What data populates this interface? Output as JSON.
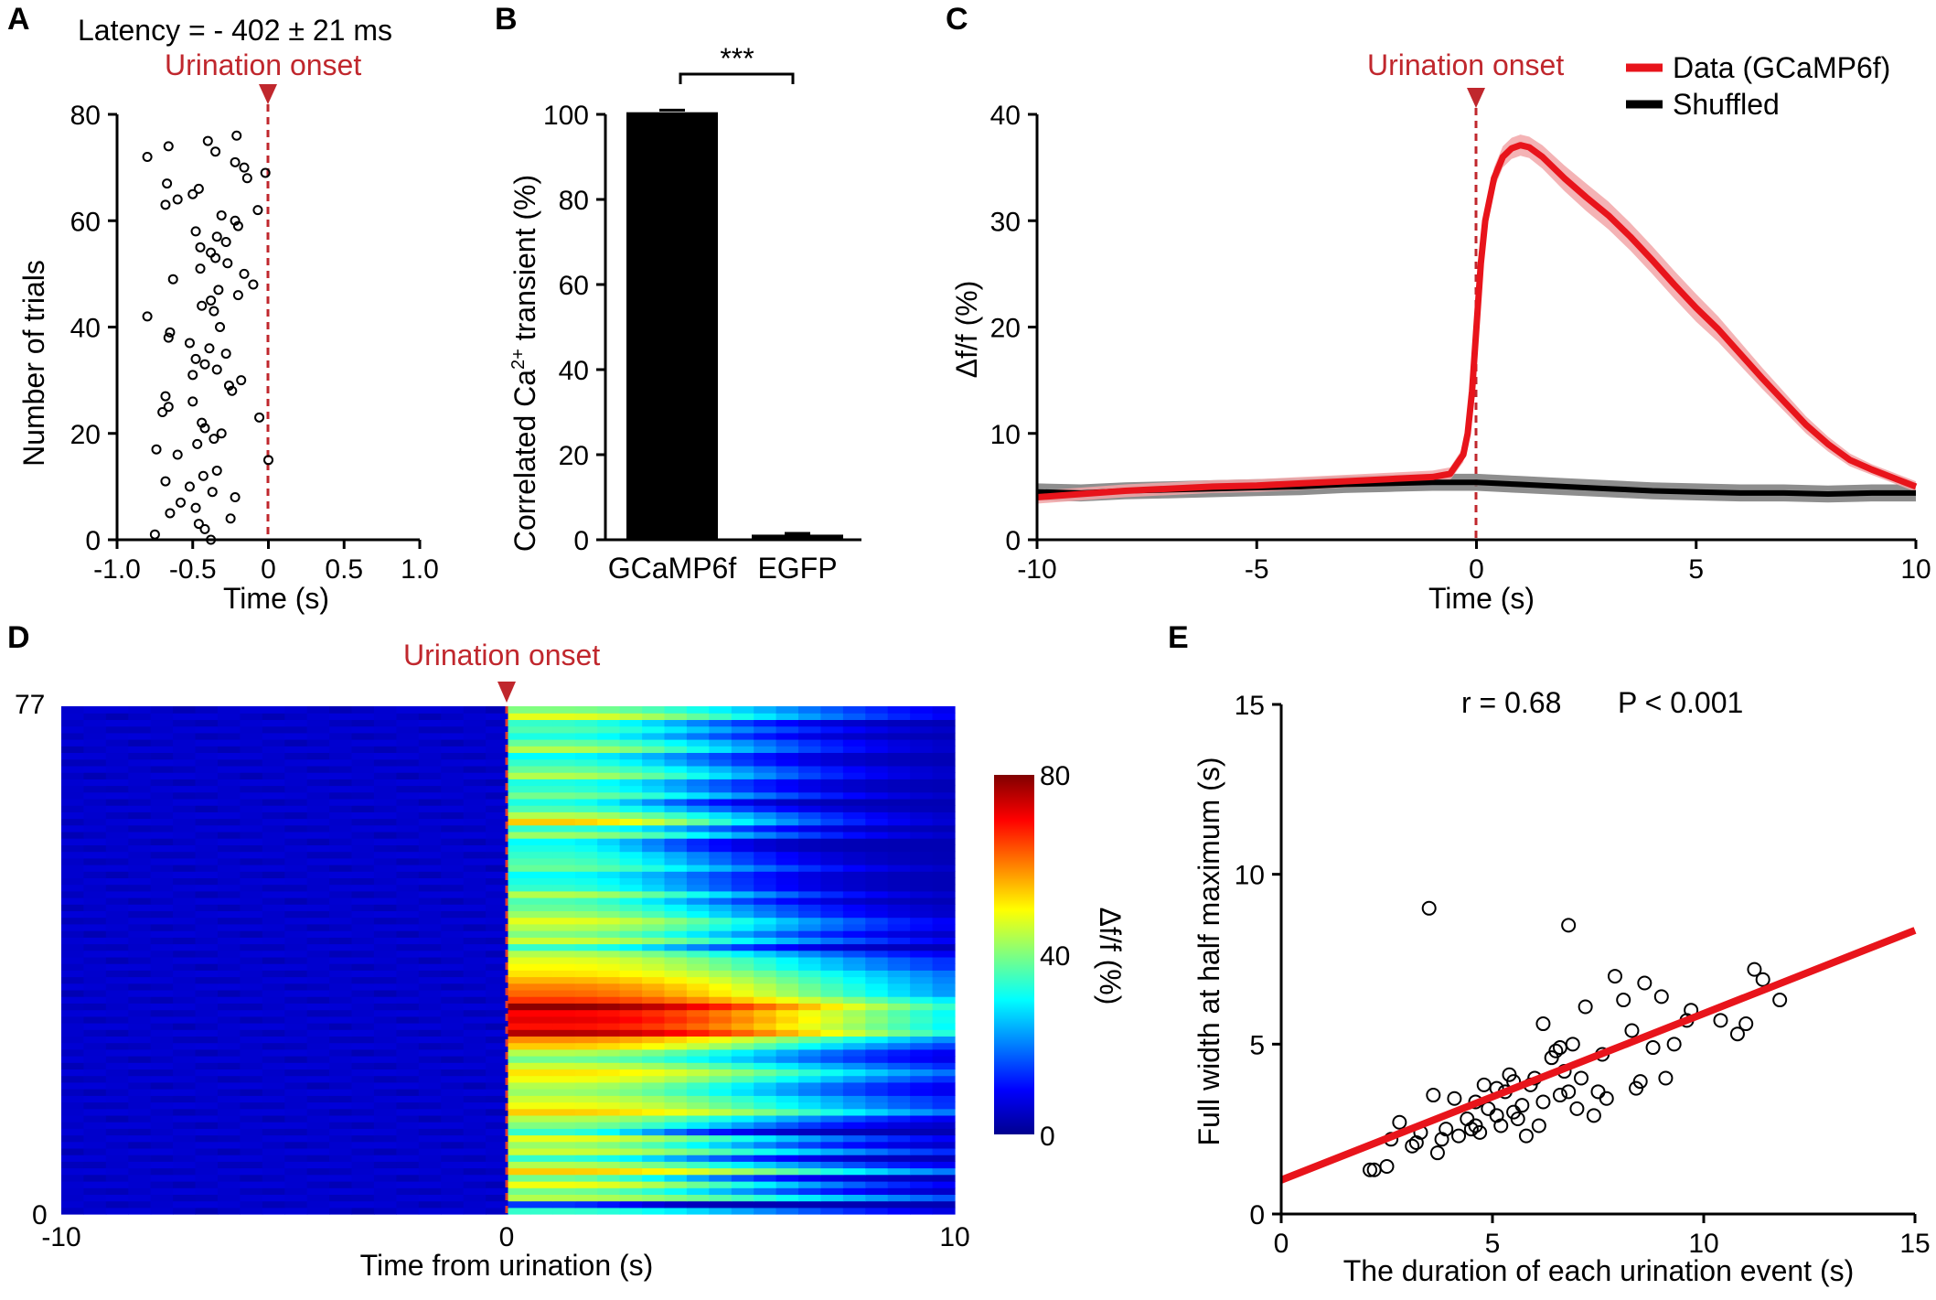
{
  "chart_data": [
    {
      "panel": "A",
      "type": "scatter",
      "title": "Latency = - 402 ± 21 ms",
      "annotation": "Urination onset",
      "xlabel": "Time (s)",
      "ylabel": "Number of trials",
      "xlim": [
        -1.0,
        1.0
      ],
      "ylim": [
        0,
        80
      ],
      "xticks": [
        "-1.0",
        "-0.5",
        "0",
        "0.5",
        "1.0"
      ],
      "yticks": [
        "0",
        "20",
        "40",
        "60",
        "80"
      ],
      "onset_x": 0,
      "points": [
        [
          -0.38,
          0
        ],
        [
          -0.75,
          1
        ],
        [
          -0.42,
          2
        ],
        [
          -0.46,
          3
        ],
        [
          -0.25,
          4
        ],
        [
          -0.65,
          5
        ],
        [
          -0.48,
          6
        ],
        [
          -0.58,
          7
        ],
        [
          -0.22,
          8
        ],
        [
          -0.37,
          9
        ],
        [
          -0.52,
          10
        ],
        [
          -0.68,
          11
        ],
        [
          -0.43,
          12
        ],
        [
          -0.34,
          13
        ],
        [
          0.0,
          15
        ],
        [
          -0.6,
          16
        ],
        [
          -0.74,
          17
        ],
        [
          -0.47,
          18
        ],
        [
          -0.36,
          19
        ],
        [
          -0.31,
          20
        ],
        [
          -0.42,
          21
        ],
        [
          -0.44,
          22
        ],
        [
          -0.06,
          23
        ],
        [
          -0.7,
          24
        ],
        [
          -0.66,
          25
        ],
        [
          -0.5,
          26
        ],
        [
          -0.68,
          27
        ],
        [
          -0.24,
          28
        ],
        [
          -0.26,
          29
        ],
        [
          -0.18,
          30
        ],
        [
          -0.5,
          31
        ],
        [
          -0.34,
          32
        ],
        [
          -0.42,
          33
        ],
        [
          -0.48,
          34
        ],
        [
          -0.28,
          35
        ],
        [
          -0.39,
          36
        ],
        [
          -0.52,
          37
        ],
        [
          -0.66,
          38
        ],
        [
          -0.65,
          39
        ],
        [
          -0.32,
          40
        ],
        [
          -0.8,
          42
        ],
        [
          -0.36,
          43
        ],
        [
          -0.44,
          44
        ],
        [
          -0.38,
          45
        ],
        [
          -0.2,
          46
        ],
        [
          -0.33,
          47
        ],
        [
          -0.1,
          48
        ],
        [
          -0.63,
          49
        ],
        [
          -0.16,
          50
        ],
        [
          -0.45,
          51
        ],
        [
          -0.27,
          52
        ],
        [
          -0.35,
          53
        ],
        [
          -0.38,
          54
        ],
        [
          -0.45,
          55
        ],
        [
          -0.28,
          56
        ],
        [
          -0.34,
          57
        ],
        [
          -0.48,
          58
        ],
        [
          -0.2,
          59
        ],
        [
          -0.22,
          60
        ],
        [
          -0.31,
          61
        ],
        [
          -0.07,
          62
        ],
        [
          -0.68,
          63
        ],
        [
          -0.6,
          64
        ],
        [
          -0.5,
          65
        ],
        [
          -0.46,
          66
        ],
        [
          -0.67,
          67
        ],
        [
          -0.14,
          68
        ],
        [
          -0.02,
          69
        ],
        [
          -0.16,
          70
        ],
        [
          -0.22,
          71
        ],
        [
          -0.8,
          72
        ],
        [
          -0.35,
          73
        ],
        [
          -0.66,
          74
        ],
        [
          -0.4,
          75
        ],
        [
          -0.21,
          76
        ]
      ]
    },
    {
      "panel": "B",
      "type": "bar",
      "categories": [
        "GCaMP6f",
        "EGFP"
      ],
      "values": [
        100.5,
        1.2
      ],
      "errors": [
        0.5,
        0.3
      ],
      "ylabel_main": "Correlated Ca",
      "ylabel_sup": "2+",
      "ylabel_rest": " transient (%)",
      "ylim": [
        0,
        100
      ],
      "yticks": [
        "0",
        "20",
        "40",
        "60",
        "80",
        "100"
      ],
      "significance": "***"
    },
    {
      "panel": "C",
      "type": "line",
      "annotation": "Urination onset",
      "xlabel": "Time (s)",
      "ylabel": "Δf/f (%)",
      "xlim": [
        -10,
        10
      ],
      "ylim": [
        0,
        40
      ],
      "xticks": [
        "-10",
        "-5",
        "0",
        "5",
        "10"
      ],
      "yticks": [
        "0",
        "10",
        "20",
        "30",
        "40"
      ],
      "onset_x": 0,
      "series": [
        {
          "name": "Data (GCaMP6f)",
          "color": "#e8141b",
          "band_color": "#f2a6a8",
          "x": [
            -10,
            -9,
            -8,
            -7,
            -6,
            -5,
            -4,
            -3,
            -2,
            -1,
            -0.6,
            -0.3,
            -0.2,
            -0.1,
            0,
            0.1,
            0.2,
            0.4,
            0.6,
            0.8,
            1.0,
            1.2,
            1.5,
            2,
            2.5,
            3,
            3.5,
            4,
            4.5,
            5,
            5.5,
            6,
            6.5,
            7,
            7.5,
            8,
            8.5,
            9,
            9.5,
            10
          ],
          "y": [
            4,
            4.3,
            4.6,
            4.8,
            5.0,
            5.1,
            5.3,
            5.5,
            5.7,
            5.9,
            6.2,
            8,
            10,
            14,
            20,
            26,
            30,
            34,
            36,
            36.8,
            37.1,
            36.9,
            36,
            34,
            32.2,
            30.5,
            28.5,
            26.3,
            24,
            21.8,
            19.8,
            17.5,
            15.2,
            13.0,
            10.8,
            9.0,
            7.5,
            6.6,
            5.8,
            5.0
          ],
          "err": [
            0.6,
            0.6,
            0.6,
            0.6,
            0.6,
            0.6,
            0.6,
            0.6,
            0.6,
            0.6,
            0.6,
            0.7,
            0.8,
            0.9,
            1.0,
            1.0,
            1.0,
            1.0,
            1.0,
            1.0,
            1.0,
            1.0,
            1.1,
            1.2,
            1.3,
            1.3,
            1.3,
            1.3,
            1.3,
            1.3,
            1.2,
            1.1,
            1.0,
            0.9,
            0.8,
            0.7,
            0.6,
            0.5,
            0.5,
            0.5
          ]
        },
        {
          "name": "Shuffled",
          "color": "#000000",
          "band_color": "#7a7a7a",
          "x": [
            -10,
            -9,
            -8,
            -7,
            -6,
            -5,
            -4,
            -3,
            -2,
            -1,
            0,
            1,
            2,
            3,
            4,
            5,
            6,
            7,
            8,
            9,
            10
          ],
          "y": [
            4.5,
            4.4,
            4.6,
            4.7,
            4.8,
            4.9,
            5.0,
            5.2,
            5.3,
            5.4,
            5.4,
            5.2,
            5.0,
            4.8,
            4.6,
            4.5,
            4.4,
            4.4,
            4.3,
            4.4,
            4.4
          ],
          "err": [
            0.8,
            0.8,
            0.8,
            0.8,
            0.8,
            0.8,
            0.8,
            0.8,
            0.8,
            0.8,
            0.8,
            0.8,
            0.8,
            0.8,
            0.8,
            0.8,
            0.8,
            0.8,
            0.8,
            0.8,
            0.8
          ]
        }
      ]
    },
    {
      "panel": "D",
      "type": "heatmap",
      "annotation": "Urination onset",
      "xlabel": "Time from urination (s)",
      "xlim": [
        -10,
        10
      ],
      "xticks": [
        "-10",
        "0",
        "10"
      ],
      "yticks": [
        "0",
        "77"
      ],
      "n_trials": 77,
      "colorbar_label": "Δf/f (%)",
      "colorbar_ticks": [
        "0",
        "40",
        "80"
      ],
      "colorbar_range": [
        0,
        80
      ],
      "rows_peak_and_decay": [
        [
          30,
          6
        ],
        [
          10,
          2
        ],
        [
          40,
          8
        ],
        [
          35,
          5
        ],
        [
          45,
          6
        ],
        [
          35,
          4
        ],
        [
          50,
          8
        ],
        [
          40,
          6
        ],
        [
          30,
          4
        ],
        [
          42,
          7
        ],
        [
          38,
          5
        ],
        [
          44,
          6
        ],
        [
          30,
          3
        ],
        [
          36,
          5
        ],
        [
          40,
          6
        ],
        [
          50,
          8
        ],
        [
          45,
          7
        ],
        [
          42,
          7
        ],
        [
          38,
          6
        ],
        [
          40,
          6
        ],
        [
          45,
          7
        ],
        [
          48,
          8
        ],
        [
          42,
          7
        ],
        [
          35,
          6
        ],
        [
          40,
          6
        ],
        [
          50,
          7
        ],
        [
          55,
          8
        ],
        [
          72,
          9
        ],
        [
          65,
          9
        ],
        [
          68,
          9
        ],
        [
          66,
          9
        ],
        [
          75,
          9
        ],
        [
          62,
          9
        ],
        [
          58,
          8
        ],
        [
          56,
          8
        ],
        [
          52,
          8
        ],
        [
          48,
          8
        ],
        [
          46,
          7
        ],
        [
          44,
          7
        ],
        [
          40,
          6
        ],
        [
          30,
          4
        ],
        [
          42,
          6
        ],
        [
          36,
          5
        ],
        [
          40,
          6
        ],
        [
          44,
          6
        ],
        [
          38,
          5
        ],
        [
          34,
          5
        ],
        [
          32,
          4
        ],
        [
          40,
          5
        ],
        [
          30,
          4
        ],
        [
          28,
          4
        ],
        [
          26,
          4
        ],
        [
          34,
          5
        ],
        [
          32,
          4
        ],
        [
          30,
          4
        ],
        [
          28,
          3
        ],
        [
          26,
          3
        ],
        [
          38,
          5
        ],
        [
          30,
          4
        ],
        [
          50,
          5
        ],
        [
          40,
          5
        ],
        [
          32,
          4
        ],
        [
          28,
          3
        ],
        [
          35,
          5
        ],
        [
          30,
          4
        ],
        [
          28,
          4
        ],
        [
          40,
          5
        ],
        [
          34,
          5
        ],
        [
          30,
          4
        ],
        [
          26,
          4
        ],
        [
          40,
          5
        ],
        [
          34,
          5
        ],
        [
          28,
          4
        ],
        [
          32,
          5
        ],
        [
          30,
          4
        ],
        [
          44,
          6
        ],
        [
          36,
          6
        ]
      ]
    },
    {
      "panel": "E",
      "type": "scatter",
      "xlabel": "The duration of each urination event (s)",
      "ylabel": "Full width at half maximum (s)",
      "stats_r": "r = 0.68",
      "stats_p": "P < 0.001",
      "xlim": [
        0,
        15
      ],
      "ylim": [
        0,
        15
      ],
      "xticks": [
        "0",
        "5",
        "10",
        "15"
      ],
      "yticks": [
        "0",
        "5",
        "10",
        "15"
      ],
      "fit": {
        "intercept": 1.0,
        "slope": 0.49,
        "color": "#e8141b"
      },
      "points": [
        [
          2.2,
          1.3
        ],
        [
          2.5,
          1.4
        ],
        [
          2.6,
          2.2
        ],
        [
          2.8,
          2.7
        ],
        [
          3.2,
          2.1
        ],
        [
          3.3,
          2.4
        ],
        [
          3.6,
          3.5
        ],
        [
          3.7,
          1.8
        ],
        [
          3.8,
          2.2
        ],
        [
          3.9,
          2.5
        ],
        [
          4.1,
          3.4
        ],
        [
          4.2,
          2.3
        ],
        [
          4.4,
          2.8
        ],
        [
          4.6,
          2.6
        ],
        [
          4.6,
          3.3
        ],
        [
          4.7,
          2.4
        ],
        [
          4.8,
          3.8
        ],
        [
          4.9,
          3.1
        ],
        [
          5.1,
          2.9
        ],
        [
          5.1,
          3.7
        ],
        [
          5.2,
          2.6
        ],
        [
          5.3,
          3.6
        ],
        [
          5.4,
          4.1
        ],
        [
          5.5,
          3.0
        ],
        [
          5.6,
          2.8
        ],
        [
          5.7,
          3.2
        ],
        [
          5.8,
          2.3
        ],
        [
          5.9,
          3.8
        ],
        [
          6.0,
          4.0
        ],
        [
          6.1,
          2.6
        ],
        [
          6.2,
          3.3
        ],
        [
          6.4,
          4.6
        ],
        [
          6.5,
          4.8
        ],
        [
          6.6,
          3.5
        ],
        [
          6.7,
          4.2
        ],
        [
          6.8,
          3.6
        ],
        [
          6.9,
          5.0
        ],
        [
          7.0,
          3.1
        ],
        [
          7.1,
          4.0
        ],
        [
          7.2,
          6.1
        ],
        [
          7.4,
          2.9
        ],
        [
          7.5,
          3.6
        ],
        [
          7.6,
          4.7
        ],
        [
          7.7,
          3.4
        ],
        [
          7.9,
          7.0
        ],
        [
          8.1,
          6.3
        ],
        [
          8.3,
          5.4
        ],
        [
          8.4,
          3.7
        ],
        [
          8.5,
          3.9
        ],
        [
          8.6,
          6.8
        ],
        [
          8.8,
          4.9
        ],
        [
          9.0,
          6.4
        ],
        [
          9.1,
          4.0
        ],
        [
          9.3,
          5.0
        ],
        [
          9.6,
          5.7
        ],
        [
          9.7,
          6.0
        ],
        [
          10.4,
          5.7
        ],
        [
          10.8,
          5.3
        ],
        [
          11.0,
          5.6
        ],
        [
          11.2,
          7.2
        ],
        [
          11.4,
          6.9
        ],
        [
          11.8,
          6.3
        ],
        [
          6.8,
          8.5
        ],
        [
          3.5,
          9.0
        ],
        [
          6.2,
          5.6
        ],
        [
          2.1,
          1.3
        ],
        [
          5.5,
          3.9
        ],
        [
          6.6,
          4.9
        ],
        [
          4.5,
          2.5
        ],
        [
          3.1,
          2.0
        ]
      ]
    }
  ],
  "panel_labels": [
    "A",
    "B",
    "C",
    "D",
    "E"
  ]
}
